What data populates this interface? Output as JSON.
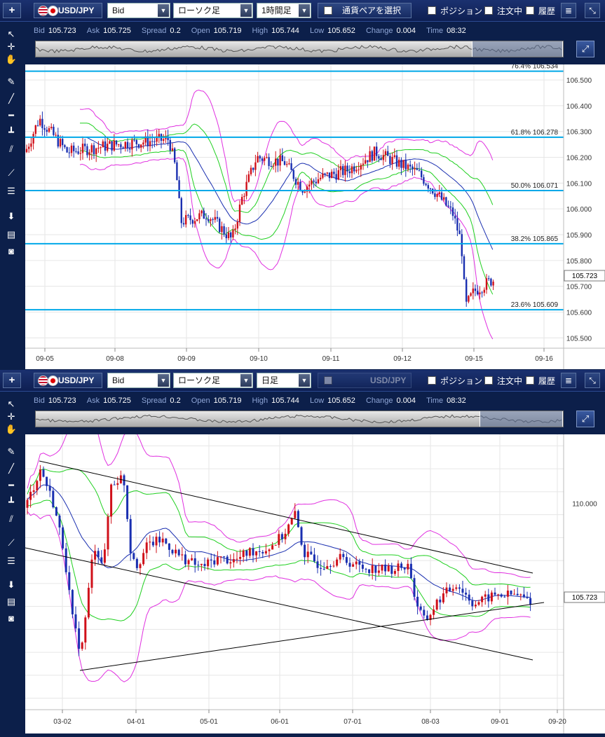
{
  "panels": [
    {
      "plus_label": "+",
      "pair": "USD/JPY",
      "price_type": "Bid",
      "chart_style": "ローソク足",
      "timeframe": "1時間足",
      "select_pair_label": "通貨ペアを選択",
      "position_label": "ポジション",
      "order_label": "注文中",
      "history_label": "履歴",
      "info": {
        "bid_label": "Bid",
        "bid": "105.723",
        "ask_label": "Ask",
        "ask": "105.725",
        "spread_label": "Spread",
        "spread": "0.2",
        "open_label": "Open",
        "open": "105.719",
        "high_label": "High",
        "high": "105.744",
        "low_label": "Low",
        "low": "105.652",
        "change_label": "Change",
        "change": "0.004",
        "time_label": "Time",
        "time": "08:32"
      },
      "current_price": "105.723",
      "x_labels": [
        "09-05",
        "09-08",
        "09-09",
        "09-10",
        "09-11",
        "09-12",
        "09-15",
        "09-16"
      ],
      "y_labels": [
        "106.500",
        "106.400",
        "106.300",
        "106.200",
        "106.100",
        "106.000",
        "105.900",
        "105.800",
        "105.700",
        "105.600",
        "105.500"
      ],
      "fib_levels": [
        {
          "label": "76.4%",
          "value": "106.534"
        },
        {
          "label": "61.8%",
          "value": "106.278"
        },
        {
          "label": "50.0%",
          "value": "106.071"
        },
        {
          "label": "38.2%",
          "value": "105.865"
        },
        {
          "label": "23.6%",
          "value": "105.609"
        }
      ]
    },
    {
      "plus_label": "+",
      "pair": "USD/JPY",
      "price_type": "Bid",
      "chart_style": "ローソク足",
      "timeframe": "日足",
      "select_pair_label": "USD/JPY",
      "position_label": "ポジション",
      "order_label": "注文中",
      "history_label": "履歴",
      "info": {
        "bid_label": "Bid",
        "bid": "105.723",
        "ask_label": "Ask",
        "ask": "105.725",
        "spread_label": "Spread",
        "spread": "0.2",
        "open_label": "Open",
        "open": "105.719",
        "high_label": "High",
        "high": "105.744",
        "low_label": "Low",
        "low": "105.652",
        "change_label": "Change",
        "change": "0.004",
        "time_label": "Time",
        "time": "08:32"
      },
      "current_price": "105.723",
      "x_labels": [
        "03-02",
        "04-01",
        "05-01",
        "06-01",
        "07-01",
        "08-03",
        "09-01",
        "09-20"
      ],
      "y_labels": [
        "110.000"
      ]
    }
  ],
  "colors": {
    "bull": "#d0101a",
    "bear": "#1a2fb0",
    "ma": "#1a2fb0",
    "band1": "#20d020",
    "band2": "#e030e0",
    "fib": "#00a8e8",
    "trend": "#000000"
  },
  "chart_data": [
    {
      "type": "candlestick",
      "title": "USD/JPY 1時間足",
      "x_ticks": [
        "09-05",
        "09-08",
        "09-09",
        "09-10",
        "09-11",
        "09-12",
        "09-15",
        "09-16"
      ],
      "ylim": [
        105.46,
        106.56
      ],
      "indicators": [
        "Bollinger Bands",
        "Fibonacci retracement"
      ],
      "fibonacci": [
        {
          "ratio": "76.4%",
          "price": 106.534
        },
        {
          "ratio": "61.8%",
          "price": 106.278
        },
        {
          "ratio": "50.0%",
          "price": 106.071
        },
        {
          "ratio": "38.2%",
          "price": 105.865
        },
        {
          "ratio": "23.6%",
          "price": 105.609
        }
      ],
      "close_path": [
        [
          "09-05",
          106.22
        ],
        [
          "09-05",
          106.35
        ],
        [
          "09-08",
          106.24
        ],
        [
          "09-08",
          106.28
        ],
        [
          "09-09",
          106.25
        ],
        [
          "09-09",
          105.95
        ],
        [
          "09-09",
          105.92
        ],
        [
          "09-10",
          105.85
        ],
        [
          "09-10",
          106.18
        ],
        [
          "09-10",
          106.22
        ],
        [
          "09-11",
          106.1
        ],
        [
          "09-11",
          106.15
        ],
        [
          "09-12",
          106.2
        ],
        [
          "09-12",
          106.12
        ],
        [
          "09-12",
          106.08
        ],
        [
          "09-15",
          106.0
        ],
        [
          "09-15",
          105.7
        ],
        [
          "09-15",
          105.723
        ]
      ],
      "last": 105.723
    },
    {
      "type": "candlestick",
      "title": "USD/JPY 日足",
      "x_ticks": [
        "03-02",
        "04-01",
        "05-01",
        "06-01",
        "07-01",
        "08-03",
        "09-01",
        "09-20"
      ],
      "y_ticks": [
        110.0
      ],
      "indicators": [
        "Bollinger Bands",
        "Trend lines"
      ],
      "close_path": [
        [
          "02-21",
          111.5
        ],
        [
          "03-02",
          107.0
        ],
        [
          "03-09",
          103.0
        ],
        [
          "03-24",
          111.2
        ],
        [
          "04-01",
          107.5
        ],
        [
          "05-01",
          106.8
        ],
        [
          "06-05",
          109.6
        ],
        [
          "07-01",
          107.5
        ],
        [
          "07-31",
          104.7
        ],
        [
          "08-14",
          106.6
        ],
        [
          "09-01",
          106.2
        ],
        [
          "09-14",
          105.723
        ]
      ],
      "last": 105.723
    }
  ]
}
